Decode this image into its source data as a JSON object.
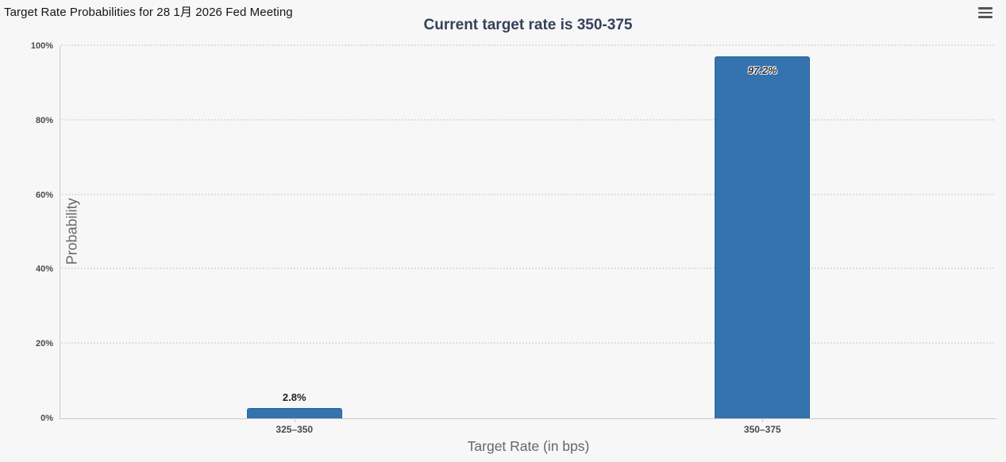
{
  "header": {
    "title": "Target Rate Probabilities for 28 1月 2026 Fed Meeting"
  },
  "menu": {
    "icon": "hamburger-menu-icon"
  },
  "chart_data": {
    "type": "bar",
    "title": "Current target rate is 350-375",
    "categories": [
      "325–350",
      "350–375"
    ],
    "values": [
      2.8,
      97.2
    ],
    "value_labels": [
      "2.8%",
      "97.2%"
    ],
    "xlabel": "Target Rate (in bps)",
    "ylabel": "Probability",
    "ylim": [
      0,
      100
    ],
    "yticks": [
      0,
      20,
      40,
      60,
      80,
      100
    ],
    "ytick_labels": [
      "0%",
      "20%",
      "40%",
      "60%",
      "80%",
      "100%"
    ],
    "grid": "dotted horizontal gridlines",
    "legend": "none",
    "bar_color": "#3473ad",
    "bar_border_color": "#2b649c"
  }
}
